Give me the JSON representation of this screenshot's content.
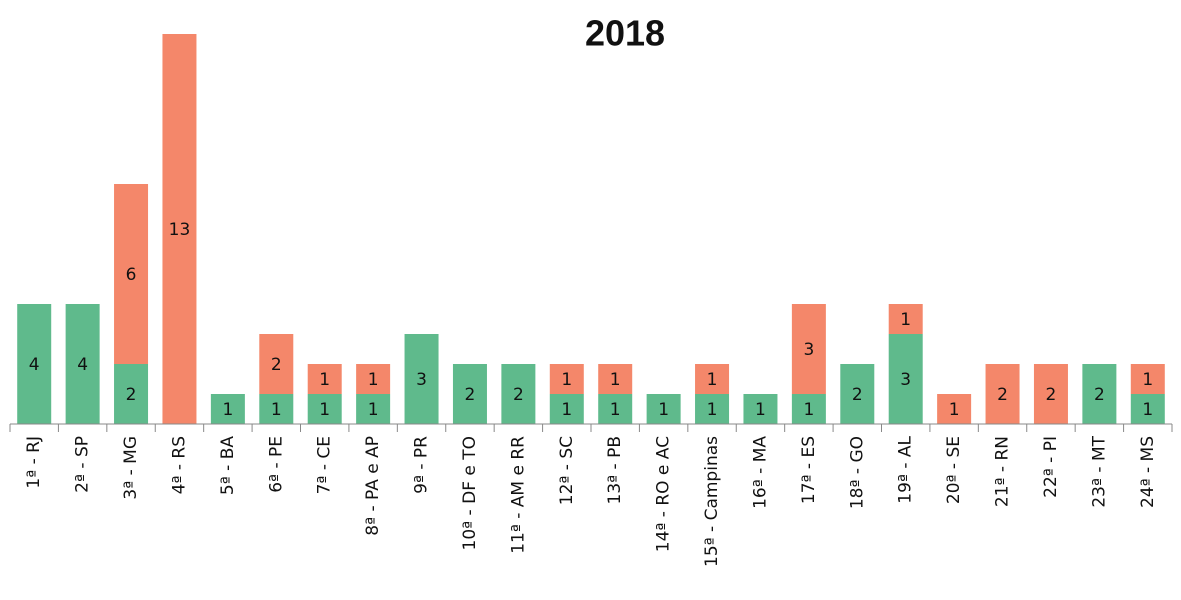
{
  "chart_data": {
    "type": "stacked_bar",
    "title": "2018",
    "categories": [
      "1ª - RJ",
      "2ª - SP",
      "3ª - MG",
      "4ª - RS",
      "5ª - BA",
      "6ª - PE",
      "7ª - CE",
      "8ª - PA e AP",
      "9ª - PR",
      "10ª - DF e TO",
      "11ª - AM e RR",
      "12ª - SC",
      "13ª - PB",
      "14ª - RO e AC",
      "15ª - Campinas",
      "16ª - MA",
      "17ª - ES",
      "18ª - GO",
      "19ª - AL",
      "20ª - SE",
      "21ª - RN",
      "22ª - PI",
      "23ª - MT",
      "24ª - MS"
    ],
    "series": [
      {
        "color": "#5fba8c",
        "values": [
          4,
          4,
          2,
          null,
          1,
          1,
          1,
          1,
          3,
          2,
          2,
          1,
          1,
          1,
          1,
          1,
          1,
          2,
          3,
          null,
          null,
          null,
          2,
          1
        ]
      },
      {
        "color": "#f4876a",
        "values": [
          null,
          null,
          6,
          13,
          null,
          2,
          1,
          1,
          null,
          null,
          null,
          1,
          1,
          null,
          1,
          null,
          3,
          null,
          1,
          1,
          2,
          2,
          null,
          1
        ]
      }
    ],
    "ylim": [
      0,
      13
    ]
  }
}
